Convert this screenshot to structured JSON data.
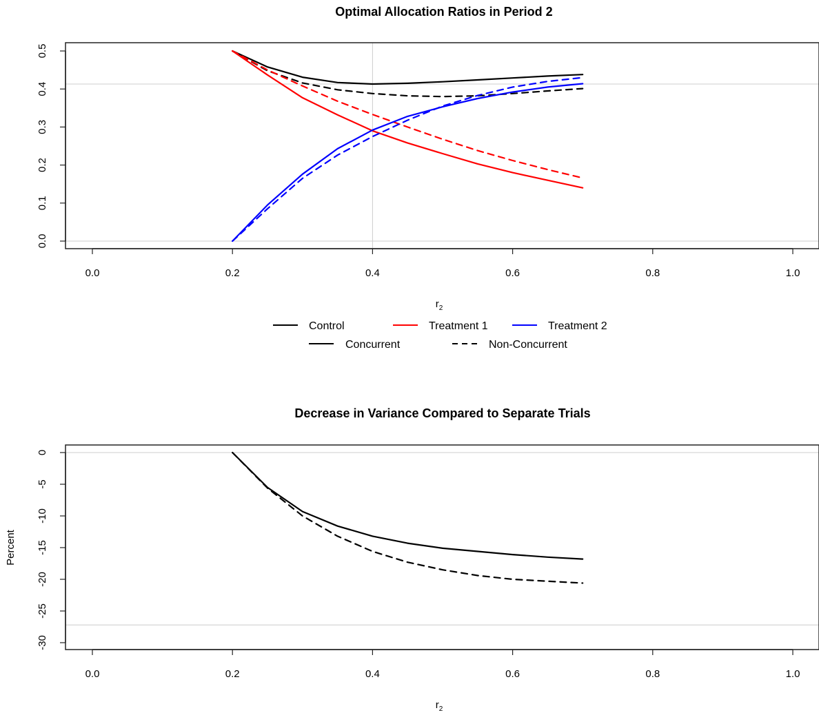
{
  "chart_data": [
    {
      "type": "line",
      "title": "Optimal Allocation Ratios in Period 2",
      "xlabel": "r",
      "xlabel_subscript": "2",
      "ylabel": "",
      "xlim": [
        0,
        1
      ],
      "ylim": [
        0,
        0.5
      ],
      "x_ticks": [
        "0.0",
        "0.2",
        "0.4",
        "0.6",
        "0.8",
        "1.0"
      ],
      "y_ticks": [
        "0.0",
        "0.1",
        "0.2",
        "0.3",
        "0.4",
        "0.5"
      ],
      "reference_lines": {
        "h": [
          0,
          0.413
        ],
        "v": [
          0.4
        ]
      },
      "x": [
        0.2,
        0.25,
        0.3,
        0.35,
        0.4,
        0.45,
        0.5,
        0.55,
        0.6,
        0.65,
        0.7
      ],
      "series": [
        {
          "name": "Control (Concurrent)",
          "group": "Control",
          "style": "solid",
          "color": "#000000",
          "values": [
            0.5,
            0.458,
            0.431,
            0.417,
            0.413,
            0.415,
            0.419,
            0.424,
            0.429,
            0.434,
            0.438
          ]
        },
        {
          "name": "Control (Non-Concurrent)",
          "group": "Control",
          "style": "dashed",
          "color": "#000000",
          "values": [
            0.5,
            0.448,
            0.416,
            0.398,
            0.388,
            0.382,
            0.38,
            0.382,
            0.388,
            0.395,
            0.401
          ]
        },
        {
          "name": "Treatment 1 (Concurrent)",
          "group": "Treatment 1",
          "style": "solid",
          "color": "#ff0000",
          "values": [
            0.5,
            0.437,
            0.377,
            0.332,
            0.29,
            0.258,
            0.23,
            0.203,
            0.18,
            0.16,
            0.14
          ]
        },
        {
          "name": "Treatment 1 (Non-Concurrent)",
          "group": "Treatment 1",
          "style": "dashed",
          "color": "#ff0000",
          "values": [
            0.5,
            0.45,
            0.408,
            0.368,
            0.333,
            0.3,
            0.268,
            0.238,
            0.212,
            0.188,
            0.166
          ]
        },
        {
          "name": "Treatment 2 (Concurrent)",
          "group": "Treatment 2",
          "style": "solid",
          "color": "#0000ff",
          "values": [
            0.0,
            0.095,
            0.176,
            0.243,
            0.292,
            0.328,
            0.353,
            0.375,
            0.392,
            0.405,
            0.414
          ]
        },
        {
          "name": "Treatment 2 (Non-Concurrent)",
          "group": "Treatment 2",
          "style": "dashed",
          "color": "#0000ff",
          "values": [
            0.0,
            0.085,
            0.165,
            0.226,
            0.275,
            0.318,
            0.355,
            0.383,
            0.405,
            0.42,
            0.43
          ]
        }
      ],
      "legend": {
        "placement": "bottom",
        "colors": [
          {
            "label": "Control",
            "color": "#000000"
          },
          {
            "label": "Treatment 1",
            "color": "#ff0000"
          },
          {
            "label": "Treatment 2",
            "color": "#0000ff"
          }
        ],
        "styles": [
          {
            "label": "Concurrent",
            "style": "solid"
          },
          {
            "label": "Non-Concurrent",
            "style": "dashed"
          }
        ]
      },
      "grid": false
    },
    {
      "type": "line",
      "title": "Decrease in Variance Compared to Separate Trials",
      "xlabel": "r",
      "xlabel_subscript": "2",
      "ylabel": "Percent",
      "xlim": [
        0,
        1
      ],
      "ylim": [
        -30,
        0
      ],
      "x_ticks": [
        "0.0",
        "0.2",
        "0.4",
        "0.6",
        "0.8",
        "1.0"
      ],
      "y_ticks": [
        "-30",
        "-25",
        "-20",
        "-15",
        "-10",
        "-5",
        "0"
      ],
      "reference_lines": {
        "h": [
          0,
          -27.2
        ]
      },
      "x": [
        0.2,
        0.25,
        0.3,
        0.35,
        0.4,
        0.45,
        0.5,
        0.55,
        0.6,
        0.65,
        0.7
      ],
      "series": [
        {
          "name": "Concurrent",
          "style": "solid",
          "color": "#000000",
          "values": [
            0,
            -5.5,
            -9.3,
            -11.6,
            -13.2,
            -14.3,
            -15.1,
            -15.6,
            -16.1,
            -16.5,
            -16.8
          ]
        },
        {
          "name": "Non-Concurrent",
          "style": "dashed",
          "color": "#000000",
          "values": [
            0,
            -5.6,
            -10.0,
            -13.2,
            -15.6,
            -17.3,
            -18.5,
            -19.4,
            -20.0,
            -20.3,
            -20.6
          ]
        }
      ],
      "grid": false
    }
  ]
}
